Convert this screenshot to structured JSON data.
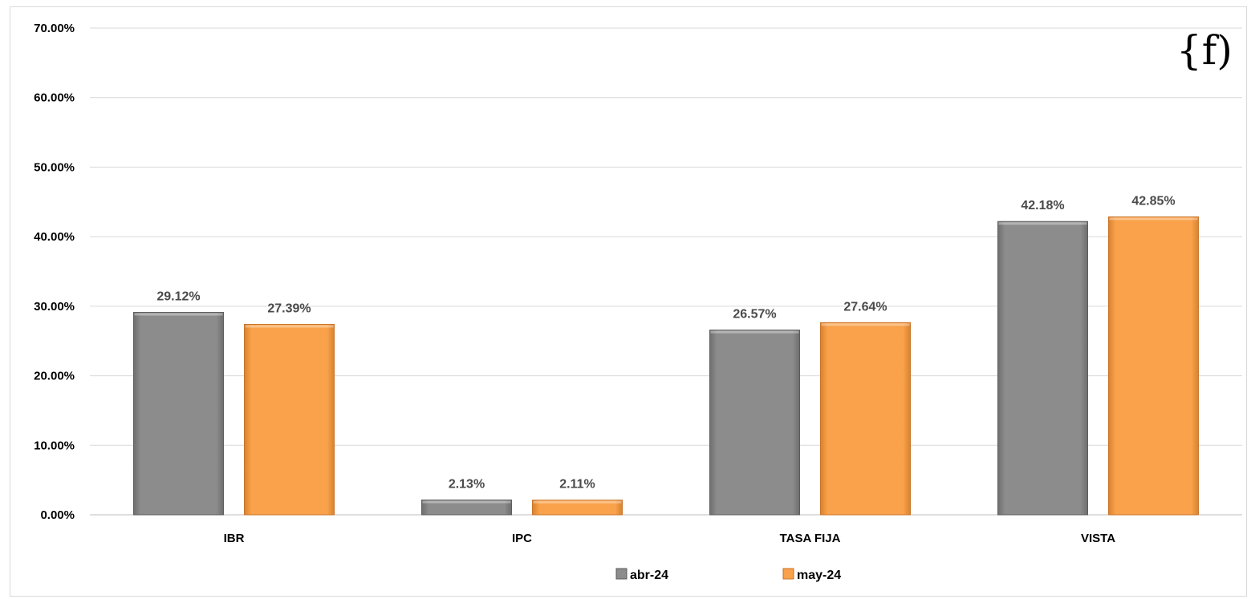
{
  "chart_data": {
    "type": "bar",
    "categories": [
      "IBR",
      "IPC",
      "TASA FIJA",
      "VISTA"
    ],
    "series": [
      {
        "name": "abr-24",
        "values": [
          29.12,
          2.13,
          26.57,
          42.18
        ],
        "labels": [
          "29.12%",
          "2.13%",
          "26.57%",
          "42.18%"
        ],
        "color": "#8c8c8c"
      },
      {
        "name": "may-24",
        "values": [
          27.39,
          2.11,
          27.64,
          42.85
        ],
        "labels": [
          "27.39%",
          "2.11%",
          "27.64%",
          "42.85%"
        ],
        "color": "#f9a24b"
      }
    ],
    "yticks": [
      "0.00%",
      "10.00%",
      "20.00%",
      "30.00%",
      "40.00%",
      "50.00%",
      "60.00%",
      "70.00%"
    ],
    "ylim": [
      0,
      70
    ],
    "title": "",
    "xlabel": "",
    "ylabel": "",
    "grid": true,
    "legend_position": "bottom"
  },
  "logo": {
    "text": "{f)",
    "icon": "function-logo-icon"
  },
  "colors": {
    "gridline": "#d9d9d9",
    "axis": "#bfbfbf",
    "frame": "#d9d9d9"
  }
}
